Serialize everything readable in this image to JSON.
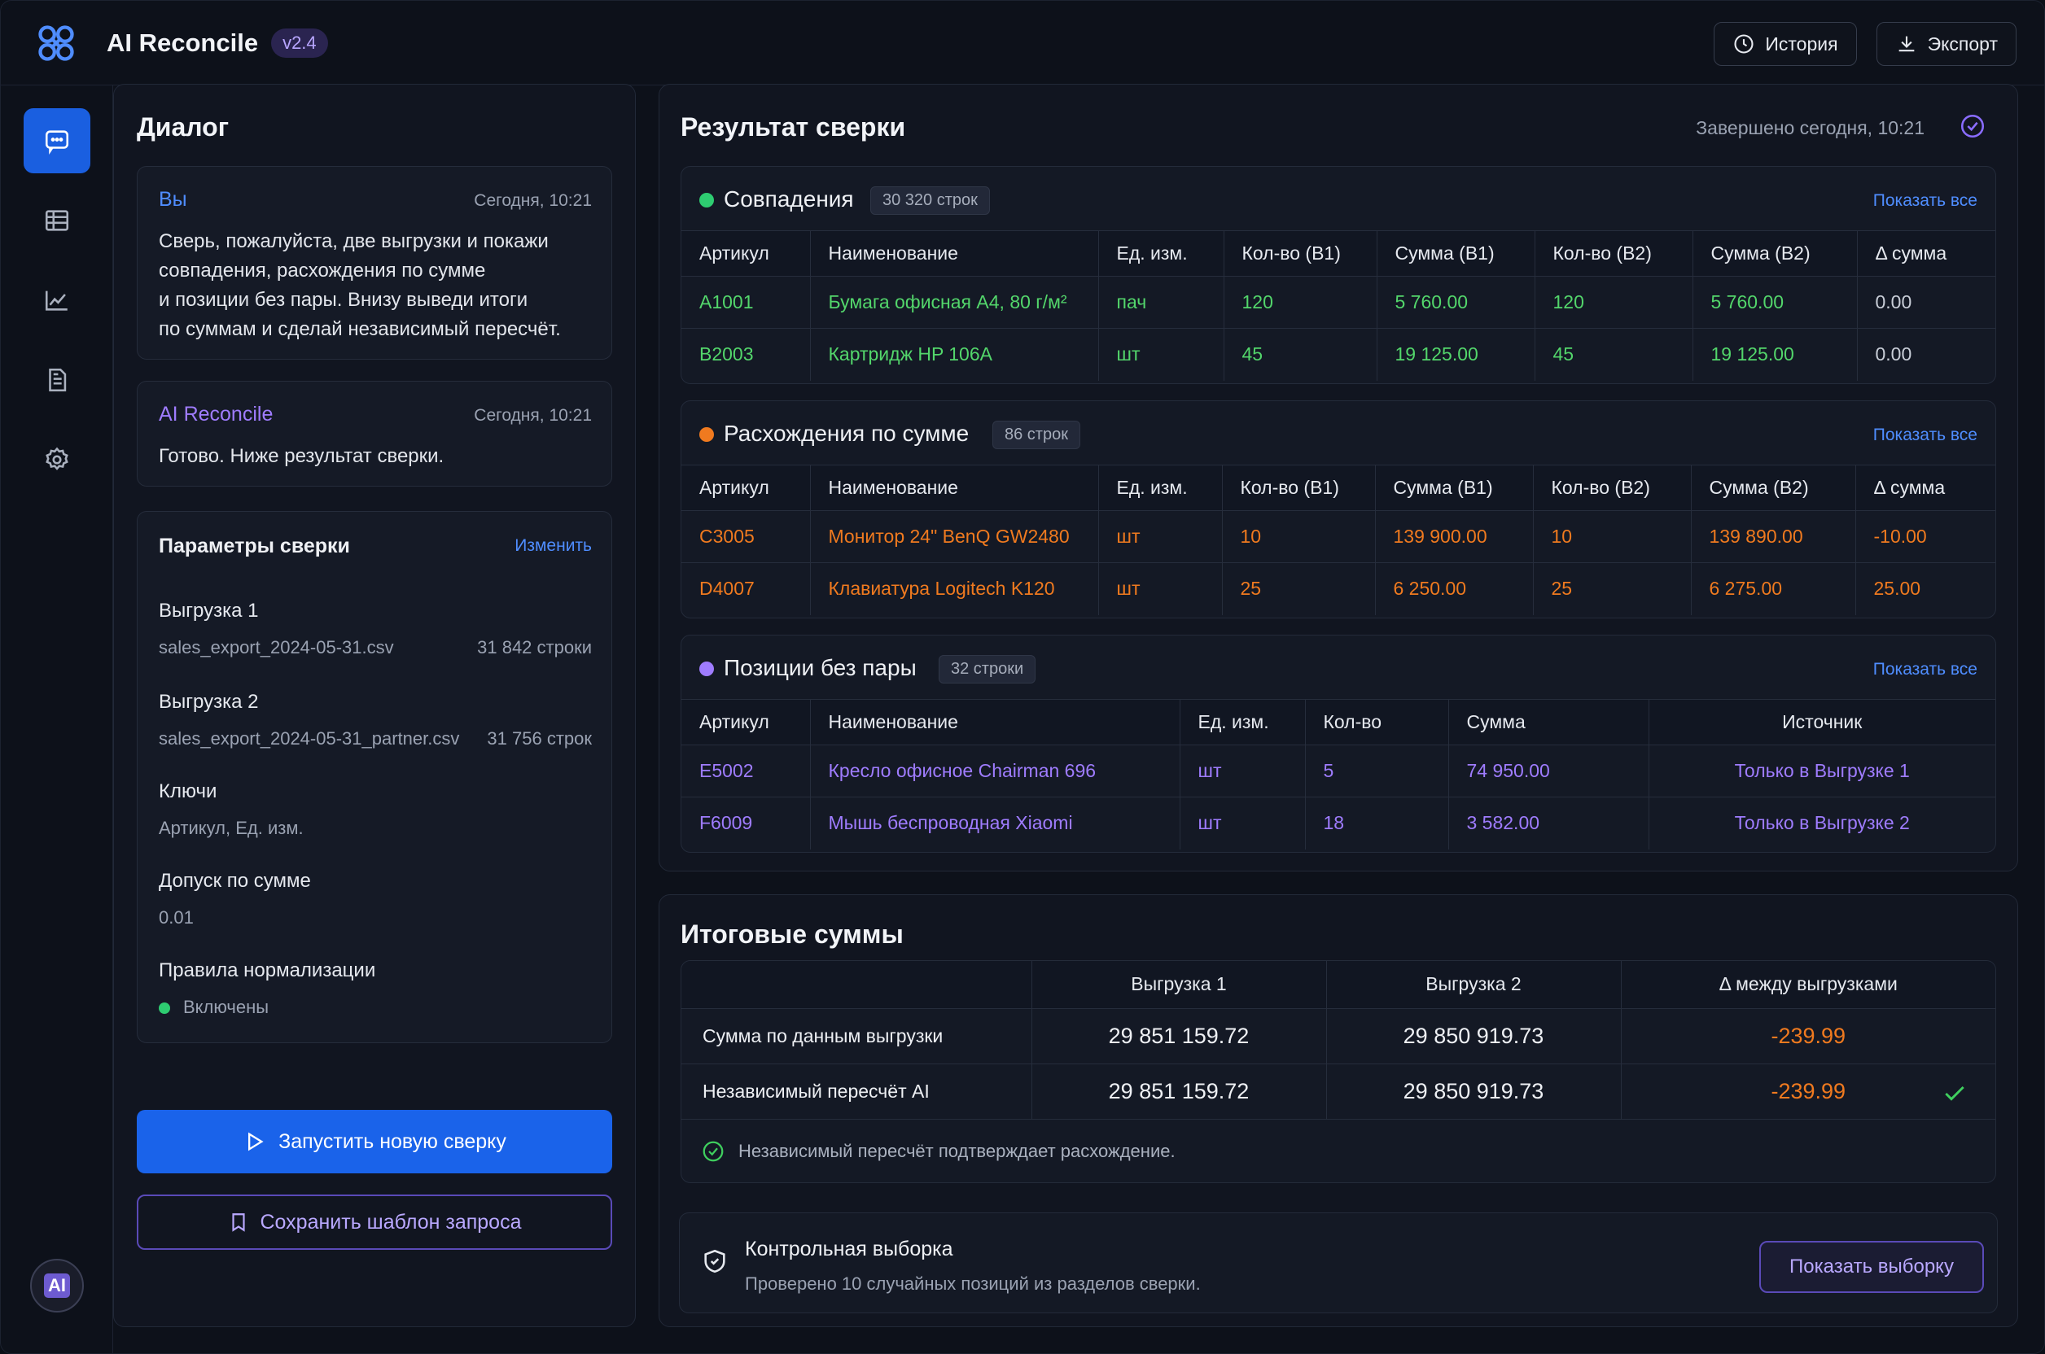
{
  "header": {
    "app_title": "AI Reconcile",
    "version": "v2.4",
    "history_label": "История",
    "export_label": "Экспорт"
  },
  "rail": {
    "items": [
      "chat-icon",
      "table-icon",
      "chart-icon",
      "document-icon",
      "gear-icon"
    ],
    "badge": "AI"
  },
  "dialog": {
    "title": "Диалог",
    "messages": [
      {
        "author": "Вы",
        "time": "Сегодня, 10:21",
        "lines": [
          "Сверь, пожалуйста, две выгрузки и покажи",
          "совпадения, расхождения по сумме",
          "и позиции без пары. Внизу выведи итоги",
          "по суммам и сделай независимый пересчёт."
        ]
      },
      {
        "author": "AI Reconcile",
        "time": "Сегодня, 10:21",
        "lines": [
          "Готово. Ниже результат сверки."
        ]
      }
    ],
    "params": {
      "title": "Параметры сверки",
      "edit_label": "Изменить",
      "export1_label": "Выгрузка 1",
      "export1_file": "sales_export_2024-05-31.csv",
      "export1_rows": "31 842 строки",
      "export2_label": "Выгрузка 2",
      "export2_file": "sales_export_2024-05-31_partner.csv",
      "export2_rows": "31 756 строк",
      "keys_label": "Ключи",
      "keys_value": "Артикул, Ед. изм.",
      "tolerance_label": "Допуск по сумме",
      "tolerance_value": "0.01",
      "normalization_label": "Правила нормализации",
      "normalization_value": "Включены"
    },
    "run_label": "Запустить новую сверку",
    "save_label": "Сохранить шаблон запроса"
  },
  "results": {
    "title": "Результат сверки",
    "status": "Завершено сегодня, 10:21",
    "show_all": "Показать все",
    "matches": {
      "title": "Совпадения",
      "count": "30 320 строк",
      "columns": [
        "Артикул",
        "Наименование",
        "Ед. изм.",
        "Кол-во (В1)",
        "Сумма (В1)",
        "Кол-во (В2)",
        "Сумма (В2)",
        "Δ сумма"
      ],
      "rows": [
        [
          "A1001",
          "Бумага офисная А4, 80 г/м²",
          "пач",
          "120",
          "5 760.00",
          "120",
          "5 760.00",
          "0.00"
        ],
        [
          "B2003",
          "Картридж HP 106A",
          "шт",
          "45",
          "19 125.00",
          "45",
          "19 125.00",
          "0.00"
        ]
      ]
    },
    "diffs": {
      "title": "Расхождения по сумме",
      "count": "86 строк",
      "columns": [
        "Артикул",
        "Наименование",
        "Ед. изм.",
        "Кол-во (В1)",
        "Сумма (В1)",
        "Кол-во (В2)",
        "Сумма (В2)",
        "Δ сумма"
      ],
      "rows": [
        [
          "C3005",
          "Монитор 24\" BenQ GW2480",
          "шт",
          "10",
          "139 900.00",
          "10",
          "139 890.00",
          "-10.00"
        ],
        [
          "D4007",
          "Клавиатура Logitech K120",
          "шт",
          "25",
          "6 250.00",
          "25",
          "6 275.00",
          "25.00"
        ]
      ]
    },
    "unpaired": {
      "title": "Позиции без пары",
      "count": "32 строки",
      "columns": [
        "Артикул",
        "Наименование",
        "Ед. изм.",
        "Кол-во",
        "Сумма",
        "Источник"
      ],
      "rows": [
        [
          "E5002",
          "Кресло офисное Chairman 696",
          "шт",
          "5",
          "74 950.00",
          "Только в Выгрузке 1"
        ],
        [
          "F6009",
          "Мышь беспроводная Xiaomi",
          "шт",
          "18",
          "3 582.00",
          "Только в Выгрузке 2"
        ]
      ]
    }
  },
  "totals": {
    "title": "Итоговые суммы",
    "columns": [
      "",
      "Выгрузка 1",
      "Выгрузка 2",
      "Δ между выгрузками"
    ],
    "rows": [
      [
        "Сумма по данным выгрузки",
        "29 851 159.72",
        "29 850 919.73",
        "-239.99"
      ],
      [
        "Независимый пересчёт AI",
        "29 851 159.72",
        "29 850 919.73",
        "-239.99"
      ]
    ],
    "confirm_text": "Независимый пересчёт подтверждает расхождение.",
    "sample": {
      "title": "Контрольная выборка",
      "text": "Проверено 10 случайных позиций из разделов сверки.",
      "button": "Показать выборку"
    }
  },
  "colors": {
    "accent": "#1a63ea",
    "match": "#53d66b",
    "diff": "#f07a1f",
    "unpaired": "#9f7cff"
  }
}
